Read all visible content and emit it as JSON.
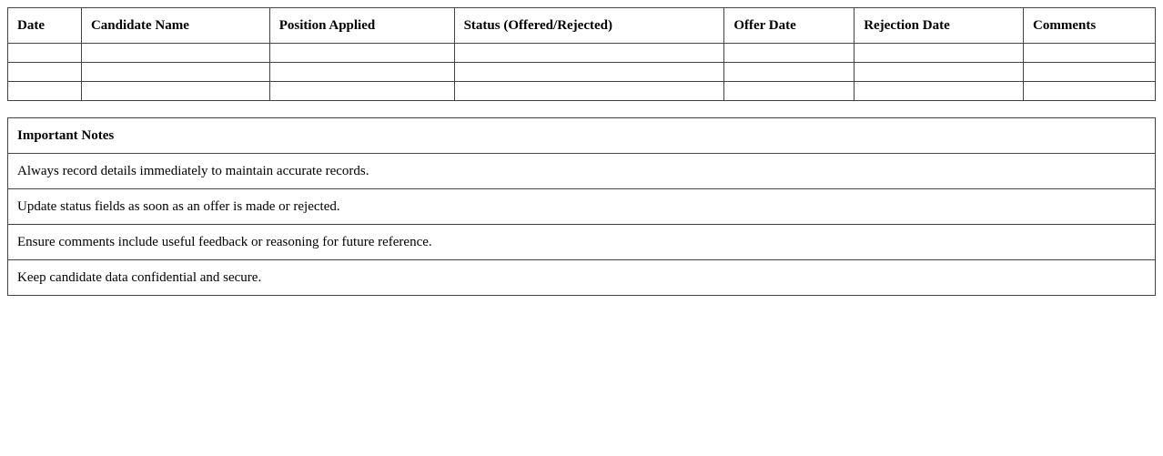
{
  "tracker": {
    "headers": [
      "Date",
      "Candidate Name",
      "Position Applied",
      "Status (Offered/Rejected)",
      "Offer Date",
      "Rejection Date",
      "Comments"
    ],
    "rows": [
      [
        "",
        "",
        "",
        "",
        "",
        "",
        ""
      ],
      [
        "",
        "",
        "",
        "",
        "",
        "",
        ""
      ],
      [
        "",
        "",
        "",
        "",
        "",
        "",
        ""
      ]
    ]
  },
  "notes": {
    "title": "Important Notes",
    "items": [
      "Always record details immediately to maintain accurate records.",
      "Update status fields as soon as an offer is made or rejected.",
      "Ensure comments include useful feedback or reasoning for future reference.",
      "Keep candidate data confidential and secure."
    ]
  }
}
